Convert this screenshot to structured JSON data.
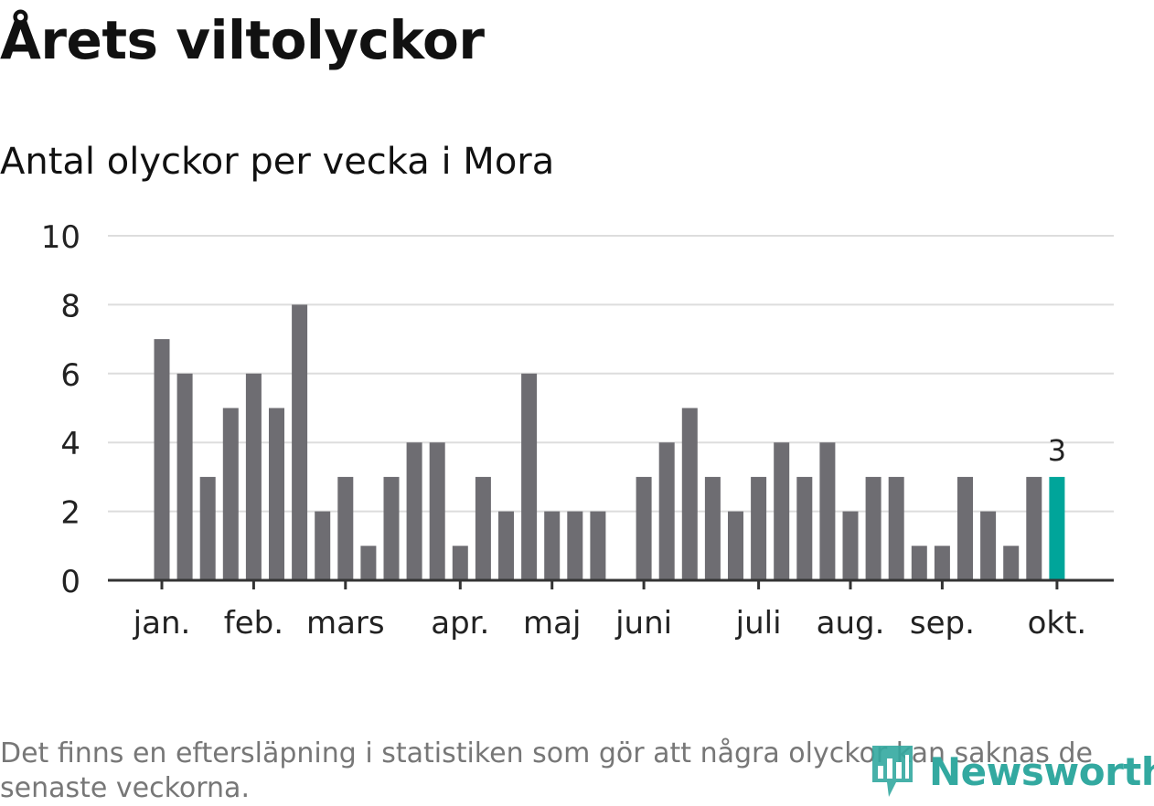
{
  "title": "Årets viltolyckor",
  "subtitle": "Antal olyckor per vecka i Mora",
  "footnote": "Det finns en eftersläpning i statistiken som gör att några olyckor kan saknas de senaste veckorna.",
  "logo_text": "Newsworthy",
  "colors": {
    "bar": "#6e6d72",
    "highlight": "#00a59a",
    "grid": "#dddddd",
    "axis": "#333333",
    "text": "#222222"
  },
  "chart_data": {
    "type": "bar",
    "title": "Årets viltolyckor",
    "subtitle": "Antal olyckor per vecka i Mora",
    "xlabel": "",
    "ylabel": "",
    "ylim": [
      0,
      10
    ],
    "yticks": [
      0,
      2,
      4,
      6,
      8,
      10
    ],
    "grid": true,
    "weeks": [
      1,
      2,
      3,
      4,
      5,
      6,
      7,
      8,
      9,
      10,
      11,
      12,
      13,
      14,
      15,
      16,
      17,
      18,
      19,
      20,
      21,
      22,
      23,
      24,
      25,
      26,
      27,
      28,
      29,
      30,
      31,
      32,
      33,
      34,
      35,
      36,
      37,
      38,
      39,
      40
    ],
    "values": [
      7,
      6,
      3,
      5,
      6,
      5,
      8,
      2,
      3,
      1,
      3,
      4,
      4,
      1,
      3,
      2,
      6,
      2,
      2,
      2,
      0,
      3,
      4,
      5,
      3,
      2,
      3,
      4,
      3,
      4,
      2,
      3,
      3,
      1,
      1,
      3,
      2,
      1,
      3,
      3
    ],
    "month_ticks": [
      {
        "label": "jan.",
        "week": 1
      },
      {
        "label": "feb.",
        "week": 5
      },
      {
        "label": "mars",
        "week": 9
      },
      {
        "label": "apr.",
        "week": 14
      },
      {
        "label": "maj",
        "week": 18
      },
      {
        "label": "juni",
        "week": 22
      },
      {
        "label": "juli",
        "week": 27
      },
      {
        "label": "aug.",
        "week": 31
      },
      {
        "label": "sep.",
        "week": 35
      },
      {
        "label": "okt.",
        "week": 40
      }
    ],
    "highlighted_week": 40,
    "highlight_label": "3"
  }
}
